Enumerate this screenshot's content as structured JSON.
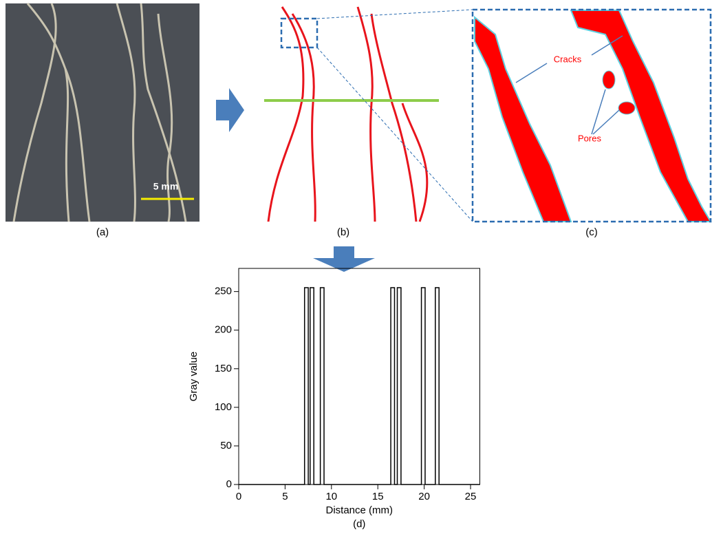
{
  "panels": {
    "a": {
      "caption": "(a)",
      "scale_label": "5 mm"
    },
    "b": {
      "caption": "(b)"
    },
    "c": {
      "caption": "(c)",
      "crack_label": "Cracks",
      "pore_label": "Pores"
    }
  },
  "chart_data": {
    "type": "line",
    "caption": "(d)",
    "x_label": "Distance (mm)",
    "y_label": "Gray value",
    "x": [
      0,
      7.1,
      7.1,
      7.5,
      7.5,
      7.7,
      7.7,
      8.1,
      8.1,
      8.8,
      8.8,
      9.2,
      9.2,
      16.4,
      16.4,
      16.8,
      16.8,
      17.1,
      17.1,
      17.5,
      17.5,
      19.7,
      19.7,
      20.1,
      20.1,
      21.2,
      21.2,
      21.6,
      21.6,
      26
    ],
    "series": [
      {
        "name": "Gray value",
        "color": "#000000",
        "values": [
          0,
          0,
          255,
          255,
          0,
          0,
          255,
          255,
          0,
          0,
          255,
          255,
          0,
          0,
          255,
          255,
          0,
          0,
          255,
          255,
          0,
          0,
          255,
          255,
          0,
          0,
          255,
          255,
          0,
          0
        ]
      }
    ],
    "xlim": [
      0,
      26
    ],
    "xticks": [
      0,
      5,
      10,
      15,
      20,
      25
    ],
    "ylim": [
      0,
      280
    ],
    "yticks": [
      0,
      50,
      100,
      150,
      200,
      250
    ]
  }
}
